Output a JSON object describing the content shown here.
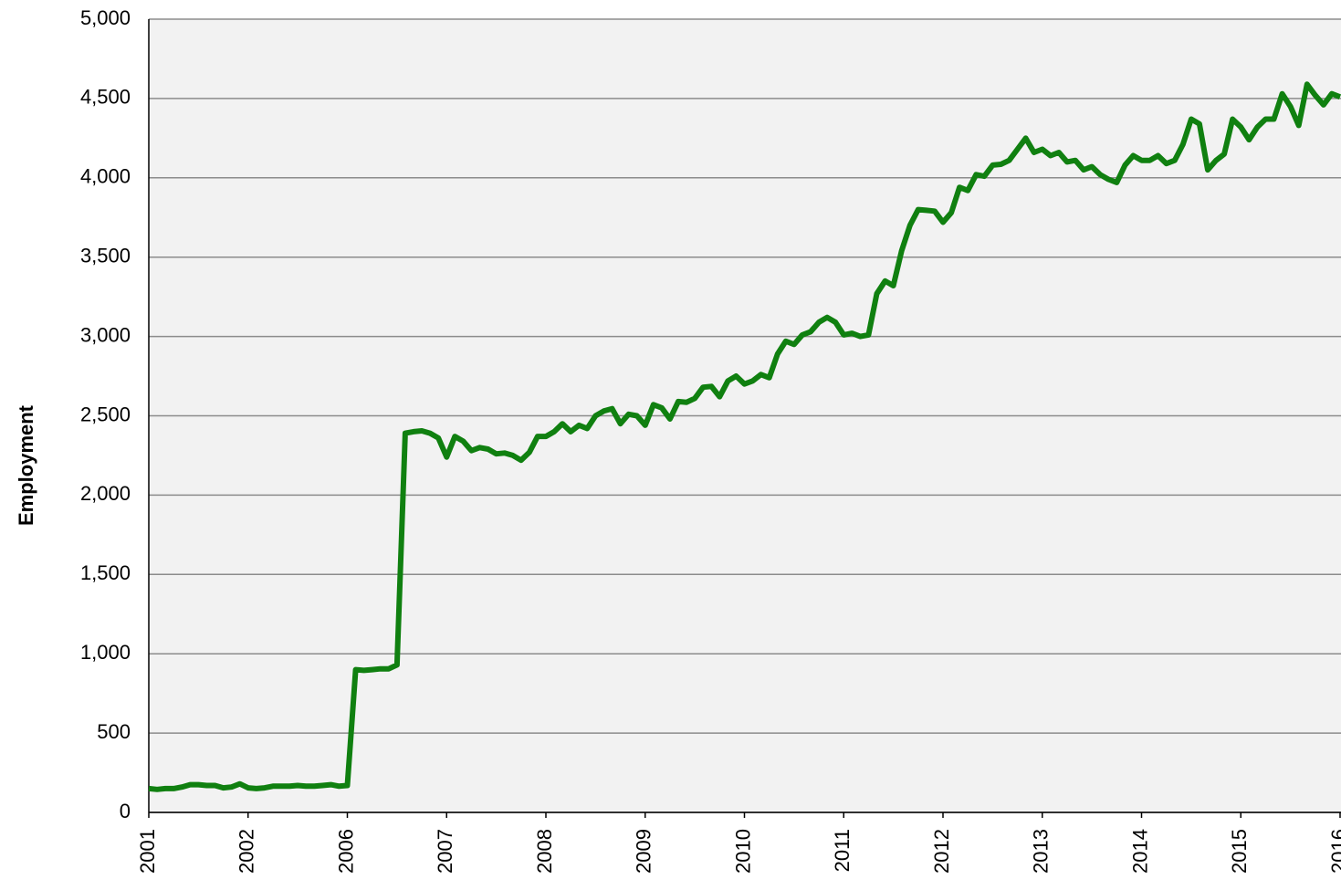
{
  "chart_data": {
    "type": "line",
    "y_label": "Employment",
    "categories": [
      "2001",
      null,
      null,
      null,
      null,
      null,
      null,
      null,
      null,
      null,
      null,
      null,
      "2002",
      null,
      null,
      null,
      null,
      null,
      null,
      null,
      null,
      null,
      null,
      null,
      "2006",
      null,
      null,
      null,
      null,
      null,
      null,
      null,
      null,
      null,
      null,
      null,
      "2007",
      null,
      null,
      null,
      null,
      null,
      null,
      null,
      null,
      null,
      null,
      null,
      "2008",
      null,
      null,
      null,
      null,
      null,
      null,
      null,
      null,
      null,
      null,
      null,
      "2009",
      null,
      null,
      null,
      null,
      null,
      null,
      null,
      null,
      null,
      null,
      null,
      "2010",
      null,
      null,
      null,
      null,
      null,
      null,
      null,
      null,
      null,
      null,
      null,
      "2011",
      null,
      null,
      null,
      null,
      null,
      null,
      null,
      null,
      null,
      null,
      null,
      "2012",
      null,
      null,
      null,
      null,
      null,
      null,
      null,
      null,
      null,
      null,
      null,
      "2013",
      null,
      null,
      null,
      null,
      null,
      null,
      null,
      null,
      null,
      null,
      null,
      "2014",
      null,
      null,
      null,
      null,
      null,
      null,
      null,
      null,
      null,
      null,
      null,
      "2015",
      null,
      null,
      null,
      null,
      null,
      null,
      null,
      null,
      null,
      null,
      null,
      "2016"
    ],
    "series": [
      {
        "name": "Employment",
        "color": "#108010",
        "values": [
          150,
          145,
          150,
          150,
          160,
          175,
          175,
          170,
          170,
          155,
          160,
          180,
          155,
          150,
          155,
          165,
          165,
          165,
          170,
          165,
          165,
          170,
          175,
          165,
          170,
          900,
          895,
          900,
          905,
          905,
          930,
          2390,
          2400,
          2405,
          2390,
          2360,
          2240,
          2370,
          2340,
          2280,
          2300,
          2290,
          2260,
          2265,
          2250,
          2220,
          2270,
          2370,
          2370,
          2400,
          2450,
          2400,
          2440,
          2420,
          2500,
          2530,
          2545,
          2450,
          2510,
          2500,
          2440,
          2570,
          2550,
          2480,
          2590,
          2585,
          2610,
          2680,
          2685,
          2620,
          2720,
          2750,
          2700,
          2720,
          2760,
          2740,
          2890,
          2970,
          2950,
          3010,
          3030,
          3090,
          3120,
          3090,
          3010,
          3020,
          3000,
          3010,
          3270,
          3350,
          3320,
          3540,
          3700,
          3800,
          3795,
          3790,
          3720,
          3780,
          3940,
          3920,
          4020,
          4010,
          4080,
          4085,
          4110,
          4180,
          4250,
          4160,
          4180,
          4140,
          4160,
          4100,
          4110,
          4050,
          4070,
          4020,
          3990,
          3970,
          4080,
          4140,
          4110,
          4110,
          4140,
          4090,
          4110,
          4210,
          4370,
          4340,
          4050,
          4110,
          4150,
          4370,
          4320,
          4240,
          4320,
          4370,
          4370,
          4530,
          4450,
          4330,
          4590,
          4520,
          4460,
          4530,
          4510
        ]
      }
    ],
    "ylim": [
      0,
      5000
    ],
    "yticks": [
      0,
      500,
      {
        "value": 1000,
        "label": "1,000"
      },
      {
        "value": 1500,
        "label": "1,500"
      },
      {
        "value": 2000,
        "label": "2,000"
      },
      {
        "value": 2500,
        "label": "2,500"
      },
      {
        "value": 3000,
        "label": "3,000"
      },
      {
        "value": 3500,
        "label": "3,500"
      },
      {
        "value": 4000,
        "label": "4,000"
      },
      {
        "value": 4500,
        "label": "4,500"
      },
      {
        "value": 5000,
        "label": "5,000"
      }
    ],
    "grid": true
  }
}
